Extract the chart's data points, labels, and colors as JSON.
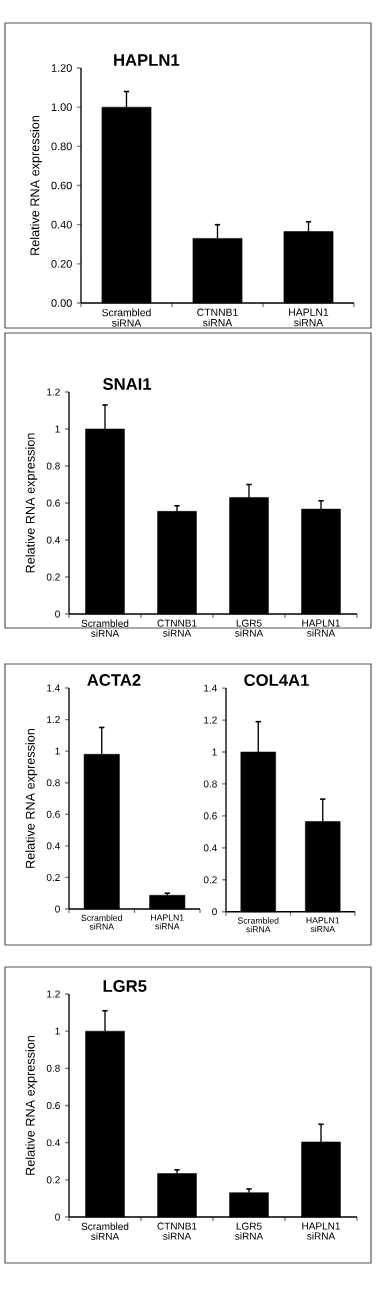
{
  "chart_data": [
    {
      "type": "bar",
      "title": "HAPLN1",
      "ylabel": "Relative RNA expression",
      "categories": [
        "Scrambled siRNA",
        "CTNNB1 siRNA",
        "HAPLN1 siRNA"
      ],
      "values": [
        1.0,
        0.33,
        0.365
      ],
      "errors": [
        0.08,
        0.07,
        0.05
      ],
      "color": "#000000",
      "ylim": [
        0,
        1.2
      ],
      "yticks": [
        {
          "value": 0,
          "label": "0.00"
        },
        {
          "value": 0.2,
          "label": "0.20"
        },
        {
          "value": 0.4,
          "label": "0.40"
        },
        {
          "value": 0.6,
          "label": "0.60"
        },
        {
          "value": 0.8,
          "label": "0.80"
        },
        {
          "value": 1.0,
          "label": "1.00"
        },
        {
          "value": 1.2,
          "label": "1.20"
        }
      ]
    },
    {
      "type": "bar",
      "title": "SNAI1",
      "ylabel": "Relative RNA expression",
      "categories": [
        "Scrambled siRNA",
        "CTNNB1 siRNA",
        "LGR5 siRNA",
        "HAPLN1 siRNA"
      ],
      "values": [
        1.0,
        0.555,
        0.63,
        0.567
      ],
      "errors": [
        0.13,
        0.03,
        0.07,
        0.045
      ],
      "color": "#000000",
      "ylim": [
        0,
        1.2
      ],
      "yticks": [
        0,
        0.2,
        0.4,
        0.6,
        0.8,
        1,
        1.2
      ]
    },
    {
      "type": "bar",
      "title": "ACTA2",
      "ylabel": "Relative RNA expression",
      "categories": [
        "Scrambled siRNA",
        "HAPLN1 siRNA"
      ],
      "values": [
        0.98,
        0.087
      ],
      "errors": [
        0.17,
        0.013
      ],
      "color": "#000000",
      "ylim": [
        0,
        1.4
      ],
      "yticks": [
        0,
        0.2,
        0.4,
        0.6,
        0.8,
        1,
        1.2,
        1.4
      ]
    },
    {
      "type": "bar",
      "title": "COL4A1",
      "categories": [
        "Scrambled siRNA",
        "HAPLN1 siRNA"
      ],
      "values": [
        1.0,
        0.565
      ],
      "errors": [
        0.19,
        0.14
      ],
      "color": "#000000",
      "ylim": [
        0,
        1.4
      ],
      "yticks": [
        0,
        0.2,
        0.4,
        0.6,
        0.8,
        1,
        1.2,
        1.4
      ]
    },
    {
      "type": "bar",
      "title": "LGR5",
      "ylabel": "Relative RNA expression",
      "categories": [
        "Scrambled siRNA",
        "CTNNB1 siRNA",
        "LGR5 siRNA",
        "HAPLN1 siRNA"
      ],
      "values": [
        1.0,
        0.234,
        0.131,
        0.404
      ],
      "errors": [
        0.11,
        0.02,
        0.02,
        0.095
      ],
      "color": "#000000",
      "ylim": [
        0,
        1.2
      ],
      "yticks": [
        0,
        0.2,
        0.4,
        0.6,
        0.8,
        1,
        1.2
      ]
    }
  ]
}
